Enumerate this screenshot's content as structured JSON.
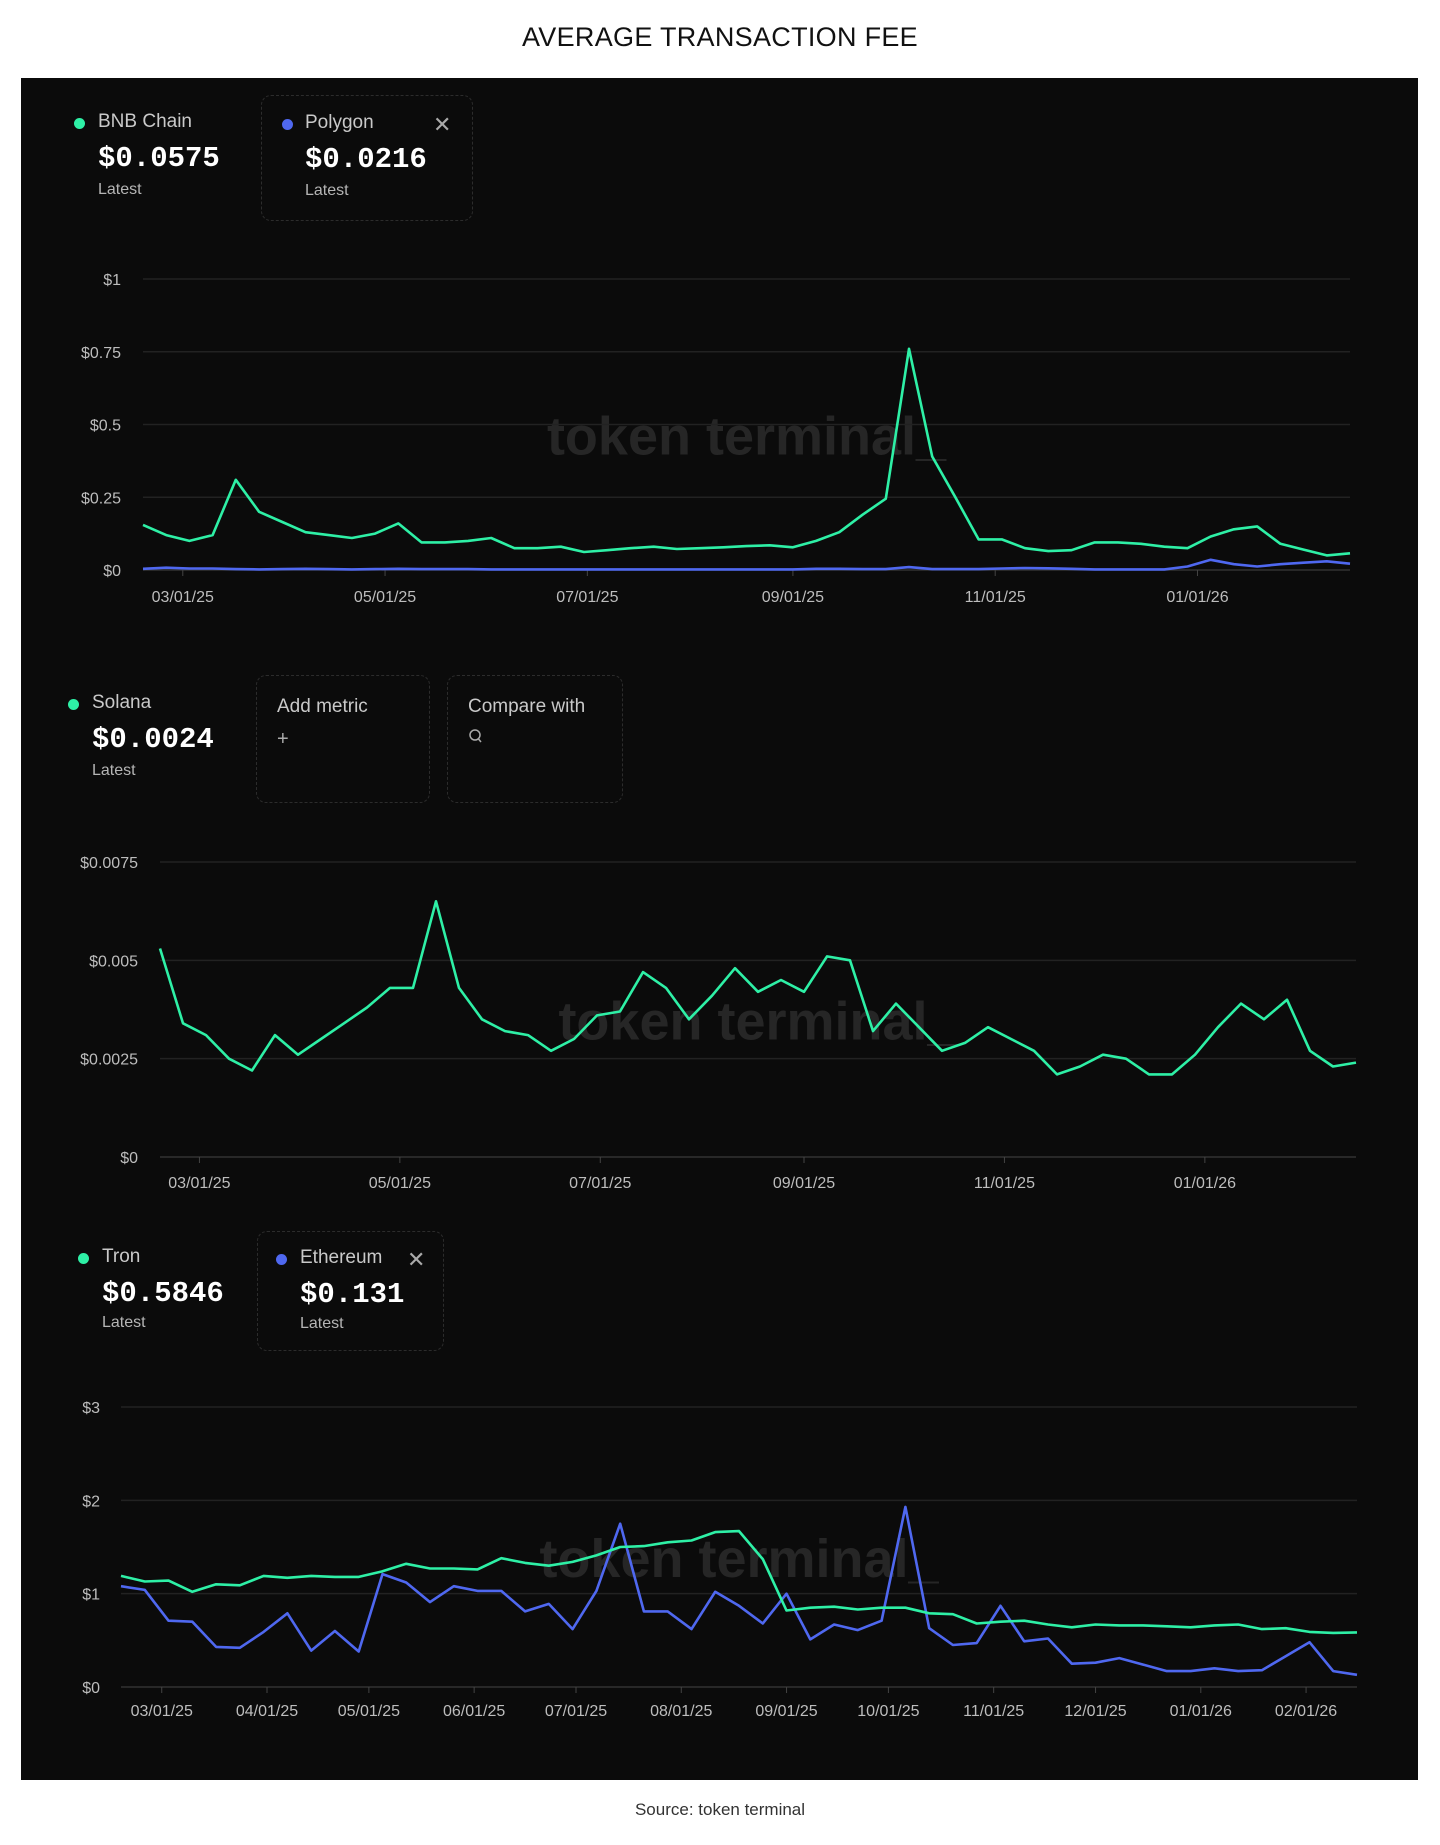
{
  "title": "AVERAGE TRANSACTION FEE",
  "source": "Source: token terminal",
  "watermark": "token terminal_",
  "colors": {
    "green": "#2ef0a6",
    "blue": "#4f68f0",
    "background": "#0b0b0b",
    "grid": "#222222"
  },
  "legends": {
    "chart1": [
      {
        "name": "BNB Chain",
        "value": "$0.0575",
        "sub": "Latest",
        "color": "#2ef0a6"
      },
      {
        "name": "Polygon",
        "value": "$0.0216",
        "sub": "Latest",
        "color": "#4f68f0",
        "removable": true,
        "close_icon": "close-icon"
      }
    ],
    "chart2": [
      {
        "name": "Solana",
        "value": "$0.0024",
        "sub": "Latest",
        "color": "#2ef0a6"
      }
    ],
    "chart2_actions": [
      {
        "label": "Add metric",
        "icon": "plus-icon",
        "glyph": "+"
      },
      {
        "label": "Compare with",
        "icon": "search-icon",
        "glyph": "⌕"
      }
    ],
    "chart3": [
      {
        "name": "Tron",
        "value": "$0.5846",
        "sub": "Latest",
        "color": "#2ef0a6"
      },
      {
        "name": "Ethereum",
        "value": "$0.131",
        "sub": "Latest",
        "color": "#4f68f0",
        "removable": true,
        "close_icon": "close-icon"
      }
    ]
  },
  "chart_data": [
    {
      "type": "line",
      "title": "",
      "x": [
        "2025-02-17",
        "2025-02-24",
        "2025-03-03",
        "2025-03-10",
        "2025-03-17",
        "2025-03-24",
        "2025-03-31",
        "2025-04-07",
        "2025-04-14",
        "2025-04-21",
        "2025-04-28",
        "2025-05-05",
        "2025-05-12",
        "2025-05-19",
        "2025-05-26",
        "2025-06-02",
        "2025-06-09",
        "2025-06-16",
        "2025-06-23",
        "2025-06-30",
        "2025-07-07",
        "2025-07-14",
        "2025-07-21",
        "2025-07-28",
        "2025-08-04",
        "2025-08-11",
        "2025-08-18",
        "2025-08-25",
        "2025-09-01",
        "2025-09-08",
        "2025-09-15",
        "2025-09-22",
        "2025-09-29",
        "2025-10-06",
        "2025-10-13",
        "2025-10-20",
        "2025-10-27",
        "2025-11-03",
        "2025-11-10",
        "2025-11-17",
        "2025-11-24",
        "2025-12-01",
        "2025-12-08",
        "2025-12-15",
        "2025-12-22",
        "2025-12-29",
        "2026-01-05",
        "2026-01-12",
        "2026-01-19",
        "2026-01-26",
        "2026-02-02",
        "2026-02-09",
        "2026-02-16"
      ],
      "series": [
        {
          "name": "BNB Chain",
          "color": "#2ef0a6",
          "values": [
            0.155,
            0.12,
            0.1,
            0.12,
            0.31,
            0.2,
            0.165,
            0.13,
            0.12,
            0.11,
            0.125,
            0.16,
            0.095,
            0.095,
            0.1,
            0.11,
            0.075,
            0.075,
            0.08,
            0.062,
            0.068,
            0.075,
            0.08,
            0.072,
            0.075,
            0.078,
            0.082,
            0.085,
            0.078,
            0.1,
            0.13,
            0.19,
            0.245,
            0.76,
            0.39,
            0.25,
            0.105,
            0.105,
            0.075,
            0.065,
            0.068,
            0.095,
            0.095,
            0.09,
            0.08,
            0.075,
            0.115,
            0.14,
            0.15,
            0.09,
            0.07,
            0.05,
            0.0575
          ]
        },
        {
          "name": "Polygon",
          "color": "#4f68f0",
          "values": [
            0.004,
            0.008,
            0.005,
            0.005,
            0.003,
            0.002,
            0.003,
            0.004,
            0.003,
            0.002,
            0.003,
            0.004,
            0.003,
            0.003,
            0.003,
            0.002,
            0.002,
            0.002,
            0.002,
            0.002,
            0.002,
            0.002,
            0.002,
            0.002,
            0.002,
            0.002,
            0.002,
            0.002,
            0.002,
            0.004,
            0.004,
            0.003,
            0.003,
            0.01,
            0.003,
            0.003,
            0.003,
            0.005,
            0.007,
            0.006,
            0.004,
            0.002,
            0.002,
            0.002,
            0.002,
            0.012,
            0.035,
            0.02,
            0.012,
            0.02,
            0.025,
            0.03,
            0.0216
          ]
        }
      ],
      "ylim": [
        0,
        1
      ],
      "yticks": [
        0,
        0.25,
        0.5,
        0.75,
        1
      ],
      "ytick_labels": [
        "$0",
        "$0.25",
        "$0.5",
        "$0.75",
        "$1"
      ],
      "xticks": [
        "2025-03-01",
        "2025-05-01",
        "2025-07-01",
        "2025-09-01",
        "2025-11-01",
        "2026-01-01"
      ],
      "xtick_labels": [
        "03/01/25",
        "05/01/25",
        "07/01/25",
        "09/01/25",
        "11/01/25",
        "01/01/26"
      ],
      "grid": true,
      "legend": "top-left"
    },
    {
      "type": "line",
      "title": "",
      "x": [
        "2025-02-17",
        "2025-02-24",
        "2025-03-03",
        "2025-03-10",
        "2025-03-17",
        "2025-03-24",
        "2025-03-31",
        "2025-04-07",
        "2025-04-14",
        "2025-04-21",
        "2025-04-28",
        "2025-05-05",
        "2025-05-12",
        "2025-05-19",
        "2025-05-26",
        "2025-06-02",
        "2025-06-09",
        "2025-06-16",
        "2025-06-23",
        "2025-06-30",
        "2025-07-07",
        "2025-07-14",
        "2025-07-21",
        "2025-07-28",
        "2025-08-04",
        "2025-08-11",
        "2025-08-18",
        "2025-08-25",
        "2025-09-01",
        "2025-09-08",
        "2025-09-15",
        "2025-09-22",
        "2025-09-29",
        "2025-10-06",
        "2025-10-13",
        "2025-10-20",
        "2025-10-27",
        "2025-11-03",
        "2025-11-10",
        "2025-11-17",
        "2025-11-24",
        "2025-12-01",
        "2025-12-08",
        "2025-12-15",
        "2025-12-22",
        "2025-12-29",
        "2026-01-05",
        "2026-01-12",
        "2026-01-19",
        "2026-01-26",
        "2026-02-02",
        "2026-02-09",
        "2026-02-16"
      ],
      "series": [
        {
          "name": "Solana",
          "color": "#2ef0a6",
          "values": [
            0.0053,
            0.0034,
            0.0031,
            0.0025,
            0.0022,
            0.0031,
            0.0026,
            0.003,
            0.0034,
            0.0038,
            0.0043,
            0.0043,
            0.0065,
            0.0043,
            0.0035,
            0.0032,
            0.0031,
            0.0027,
            0.003,
            0.0036,
            0.0037,
            0.0047,
            0.0043,
            0.0035,
            0.0041,
            0.0048,
            0.0042,
            0.0045,
            0.0042,
            0.0051,
            0.005,
            0.0032,
            0.0039,
            0.0033,
            0.0027,
            0.0029,
            0.0033,
            0.003,
            0.0027,
            0.0021,
            0.0023,
            0.0026,
            0.0025,
            0.0021,
            0.0021,
            0.0026,
            0.0033,
            0.0039,
            0.0035,
            0.004,
            0.0027,
            0.0023,
            0.0024
          ]
        }
      ],
      "ylim": [
        0,
        0.0075
      ],
      "yticks": [
        0,
        0.0025,
        0.005,
        0.0075
      ],
      "ytick_labels": [
        "$0",
        "$0.0025",
        "$0.005",
        "$0.0075"
      ],
      "xticks": [
        "2025-03-01",
        "2025-05-01",
        "2025-07-01",
        "2025-09-01",
        "2025-11-01",
        "2026-01-01"
      ],
      "xtick_labels": [
        "03/01/25",
        "05/01/25",
        "07/01/25",
        "09/01/25",
        "11/01/25",
        "01/01/26"
      ],
      "grid": true,
      "legend": "top-left"
    },
    {
      "type": "line",
      "title": "",
      "x": [
        "2025-02-17",
        "2025-02-24",
        "2025-03-03",
        "2025-03-10",
        "2025-03-17",
        "2025-03-24",
        "2025-03-31",
        "2025-04-07",
        "2025-04-14",
        "2025-04-21",
        "2025-04-28",
        "2025-05-05",
        "2025-05-12",
        "2025-05-19",
        "2025-05-26",
        "2025-06-02",
        "2025-06-09",
        "2025-06-16",
        "2025-06-23",
        "2025-06-30",
        "2025-07-07",
        "2025-07-14",
        "2025-07-21",
        "2025-07-28",
        "2025-08-04",
        "2025-08-11",
        "2025-08-18",
        "2025-08-25",
        "2025-09-01",
        "2025-09-08",
        "2025-09-15",
        "2025-09-22",
        "2025-09-29",
        "2025-10-06",
        "2025-10-13",
        "2025-10-20",
        "2025-10-27",
        "2025-11-03",
        "2025-11-10",
        "2025-11-17",
        "2025-11-24",
        "2025-12-01",
        "2025-12-08",
        "2025-12-15",
        "2025-12-22",
        "2025-12-29",
        "2026-01-05",
        "2026-01-12",
        "2026-01-19",
        "2026-01-26",
        "2026-02-02",
        "2026-02-09",
        "2026-02-16"
      ],
      "series": [
        {
          "name": "Tron",
          "color": "#2ef0a6",
          "values": [
            1.19,
            1.13,
            1.14,
            1.02,
            1.1,
            1.09,
            1.19,
            1.17,
            1.19,
            1.18,
            1.18,
            1.24,
            1.32,
            1.27,
            1.27,
            1.26,
            1.38,
            1.33,
            1.3,
            1.34,
            1.41,
            1.5,
            1.51,
            1.55,
            1.57,
            1.66,
            1.67,
            1.37,
            0.82,
            0.85,
            0.86,
            0.83,
            0.85,
            0.85,
            0.79,
            0.78,
            0.68,
            0.7,
            0.71,
            0.67,
            0.64,
            0.67,
            0.66,
            0.66,
            0.65,
            0.64,
            0.66,
            0.67,
            0.62,
            0.63,
            0.59,
            0.58,
            0.5846
          ]
        },
        {
          "name": "Ethereum",
          "color": "#4f68f0",
          "values": [
            1.08,
            1.04,
            0.71,
            0.7,
            0.43,
            0.42,
            0.59,
            0.79,
            0.39,
            0.6,
            0.38,
            1.21,
            1.12,
            0.91,
            1.08,
            1.03,
            1.03,
            0.81,
            0.89,
            0.62,
            1.03,
            1.75,
            0.81,
            0.81,
            0.62,
            1.02,
            0.87,
            0.68,
            1.0,
            0.51,
            0.67,
            0.61,
            0.71,
            1.93,
            0.63,
            0.45,
            0.47,
            0.87,
            0.49,
            0.52,
            0.25,
            0.26,
            0.31,
            0.24,
            0.17,
            0.17,
            0.2,
            0.17,
            0.18,
            0.33,
            0.48,
            0.17,
            0.131
          ]
        }
      ],
      "ylim": [
        0,
        3
      ],
      "yticks": [
        0,
        1,
        2,
        3
      ],
      "ytick_labels": [
        "$0",
        "$1",
        "$2",
        "$3"
      ],
      "xticks": [
        "2025-03-01",
        "2025-04-01",
        "2025-05-01",
        "2025-06-01",
        "2025-07-01",
        "2025-08-01",
        "2025-09-01",
        "2025-10-01",
        "2025-11-01",
        "2025-12-01",
        "2026-01-01",
        "2026-02-01"
      ],
      "xtick_labels": [
        "03/01/25",
        "04/01/25",
        "05/01/25",
        "06/01/25",
        "07/01/25",
        "08/01/25",
        "09/01/25",
        "10/01/25",
        "11/01/25",
        "12/01/25",
        "01/01/26",
        "02/01/26"
      ],
      "grid": true,
      "legend": "top-left"
    }
  ]
}
